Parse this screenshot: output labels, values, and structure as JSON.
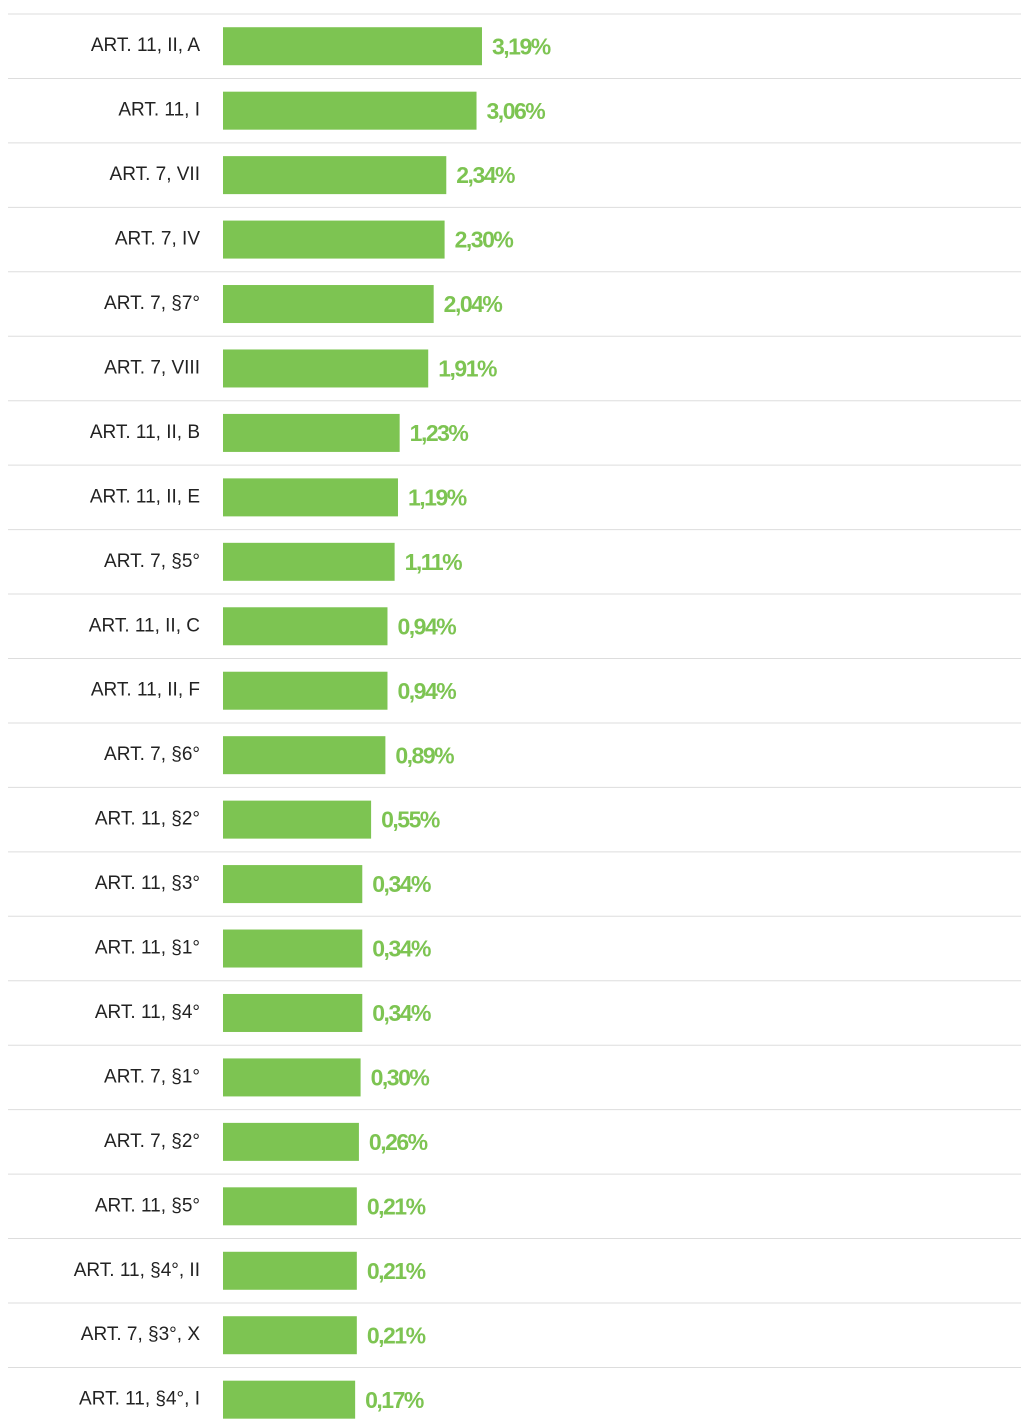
{
  "chart_data": {
    "type": "bar",
    "orientation": "horizontal",
    "color": "#7dc452",
    "categories": [
      "ART. 11, II, A",
      "ART. 11, I",
      "ART. 7, VII",
      "ART. 7, IV",
      "ART. 7, §7°",
      "ART. 7, VIII",
      "ART. 11, II, B",
      "ART. 11, II, E",
      "ART. 7, §5°",
      "ART. 11, II, C",
      "ART. 11, II, F",
      "ART. 7, §6°",
      "ART. 11, §2°",
      "ART. 11, §3°",
      "ART. 11, §1°",
      "ART. 11, §4°",
      "ART. 7, §1°",
      "ART. 7, §2°",
      "ART. 11, §5°",
      "ART. 11, §4°, II",
      "ART. 7, §3°, X",
      "ART. 11, §4°, I"
    ],
    "values": [
      3.19,
      3.06,
      2.34,
      2.3,
      2.04,
      1.91,
      1.23,
      1.19,
      1.11,
      0.94,
      0.94,
      0.89,
      0.55,
      0.34,
      0.34,
      0.34,
      0.3,
      0.26,
      0.21,
      0.21,
      0.21,
      0.17
    ],
    "value_labels": [
      "3,19%",
      "3,06%",
      "2,34%",
      "2,30%",
      "2,04%",
      "1,91%",
      "1,23%",
      "1,19%",
      "1,11%",
      "0,94%",
      "0,94%",
      "0,89%",
      "0,55%",
      "0,34%",
      "0,34%",
      "0,34%",
      "0,30%",
      "0,26%",
      "0,21%",
      "0,21%",
      "0,21%",
      "0,17%"
    ]
  }
}
